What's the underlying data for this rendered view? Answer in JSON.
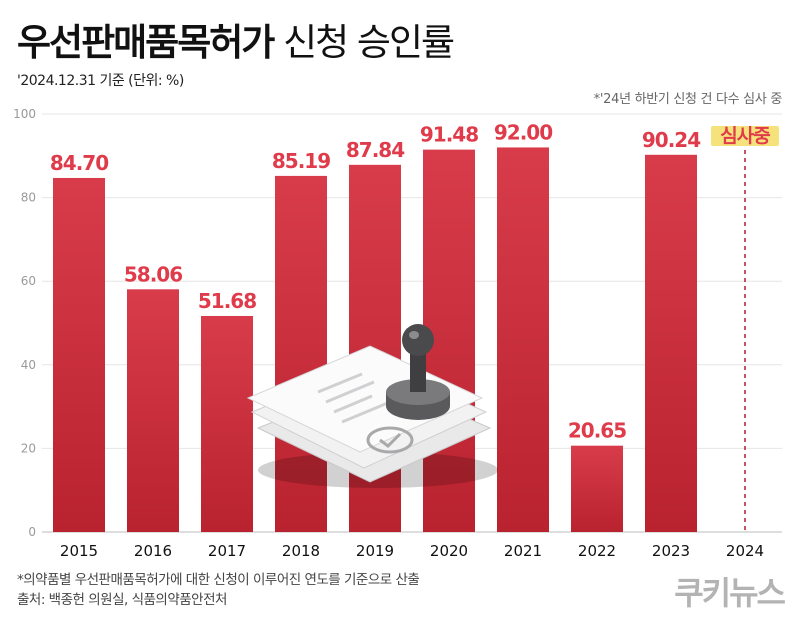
{
  "header": {
    "title_bold": "우선판매품목허가",
    "title_light": " 신청 승인률",
    "subnote": "'2024.12.31 기준 (단위: %)",
    "right_note": "*'24년 하반기 신청 건 다수 심사 중"
  },
  "footer": {
    "note1": "*의약품별 우선판매품목허가에 대한 신청이 이루어진 연도를 기준으로 산출",
    "note2": "출처: 백종헌 의원실, 식품의약품안전처",
    "logo": "쿠키뉴스"
  },
  "colors": {
    "bar": "#d33845",
    "label": "#e03b4a",
    "dashed": "#b01e2a",
    "highlight": "#f6e27a"
  },
  "chart_data": {
    "type": "bar",
    "categories": [
      "2015",
      "2016",
      "2017",
      "2018",
      "2019",
      "2020",
      "2021",
      "2022",
      "2023",
      "2024"
    ],
    "values": [
      84.7,
      58.06,
      51.68,
      85.19,
      87.84,
      91.48,
      92.0,
      20.65,
      90.24,
      null
    ],
    "value_labels": [
      "84.70",
      "58.06",
      "51.68",
      "85.19",
      "87.84",
      "91.48",
      "92.00",
      "20.65",
      "90.24",
      "심사중"
    ],
    "y_ticks": [
      "0",
      "20",
      "40",
      "60",
      "80",
      "100"
    ],
    "ylim": [
      0,
      100
    ],
    "grid": true
  }
}
